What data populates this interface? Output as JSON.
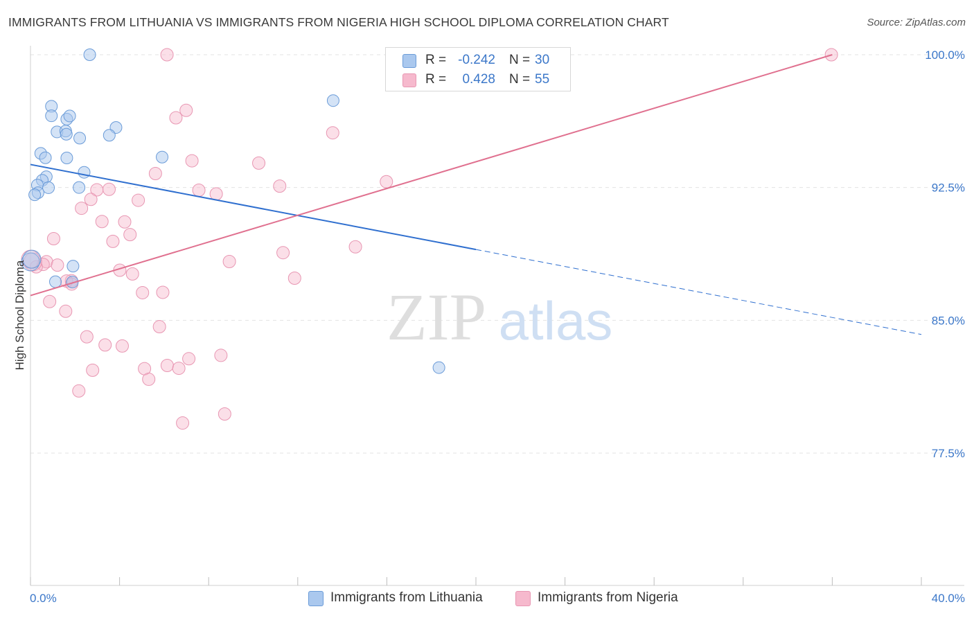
{
  "title": "IMMIGRANTS FROM LITHUANIA VS IMMIGRANTS FROM NIGERIA HIGH SCHOOL DIPLOMA CORRELATION CHART",
  "source": "Source: ZipAtlas.com",
  "watermark": {
    "zip": "ZIP",
    "atlas": "atlas"
  },
  "colors": {
    "lithuania_fill": "#aac8ee",
    "lithuania_stroke": "#6a9bd8",
    "lithuania_line": "#2f6fcf",
    "nigeria_fill": "#f6b9cd",
    "nigeria_stroke": "#e896b2",
    "nigeria_line": "#e0708f",
    "axis_text": "#3b77c9",
    "grid": "#e3e3e3"
  },
  "legend": {
    "rows": [
      {
        "r_label": "R =",
        "r_value": "-0.242",
        "n_label": "N =",
        "n_value": "30"
      },
      {
        "r_label": "R =",
        "r_value": "0.428",
        "n_label": "N =",
        "n_value": "55"
      }
    ]
  },
  "chart_data": {
    "type": "scatter",
    "title": "IMMIGRANTS FROM LITHUANIA VS IMMIGRANTS FROM NIGERIA HIGH SCHOOL DIPLOMA CORRELATION CHART",
    "xlabel": "",
    "ylabel": "High School Diploma",
    "xlim": [
      0,
      40
    ],
    "ylim": [
      70.0,
      101.0
    ],
    "x_tick_labels": [
      "0.0%",
      "40.0%"
    ],
    "y_ticks": [
      77.5,
      85.0,
      92.5,
      100.0
    ],
    "y_tick_labels": [
      "77.5%",
      "85.0%",
      "92.5%",
      "100.0%"
    ],
    "grid": true,
    "legend_position": "bottom",
    "series": [
      {
        "name": "Immigrants from Lithuania",
        "color": "#6a9bd8",
        "trend": {
          "x0": 0.0,
          "y0": 93.8,
          "x1": 20.0,
          "y1": 89.0,
          "dashed_to_x": 40.0,
          "dashed_to_y": 84.2
        },
        "points": [
          [
            2.66,
            100.0
          ],
          [
            0.94,
            97.09
          ],
          [
            1.63,
            96.36
          ],
          [
            0.94,
            96.55
          ],
          [
            1.76,
            96.54
          ],
          [
            3.84,
            95.89
          ],
          [
            1.19,
            95.64
          ],
          [
            1.58,
            95.69
          ],
          [
            1.61,
            95.51
          ],
          [
            3.54,
            95.45
          ],
          [
            2.21,
            95.29
          ],
          [
            0.46,
            94.43
          ],
          [
            1.63,
            94.17
          ],
          [
            0.67,
            94.18
          ],
          [
            5.91,
            94.22
          ],
          [
            2.41,
            93.36
          ],
          [
            0.71,
            93.11
          ],
          [
            0.53,
            92.91
          ],
          [
            0.31,
            92.64
          ],
          [
            0.81,
            92.49
          ],
          [
            2.18,
            92.5
          ],
          [
            0.34,
            92.21
          ],
          [
            0.19,
            92.09
          ],
          [
            13.59,
            97.41
          ],
          [
            1.91,
            88.06
          ],
          [
            1.12,
            87.18
          ],
          [
            1.88,
            87.16
          ],
          [
            18.34,
            82.33
          ],
          [
            0.0,
            88.3
          ],
          [
            0.06,
            88.45
          ]
        ]
      },
      {
        "name": "Immigrants from Nigeria",
        "color": "#e896b2",
        "trend": {
          "x0": 0.0,
          "y0": 86.4,
          "x1": 36.0,
          "y1": 100.0
        },
        "points": [
          [
            6.13,
            100.0
          ],
          [
            35.96,
            100.0
          ],
          [
            6.99,
            96.86
          ],
          [
            6.53,
            96.44
          ],
          [
            13.57,
            95.59
          ],
          [
            7.25,
            94.01
          ],
          [
            10.25,
            93.88
          ],
          [
            5.61,
            93.29
          ],
          [
            15.98,
            92.83
          ],
          [
            11.19,
            92.58
          ],
          [
            3.53,
            92.4
          ],
          [
            2.98,
            92.37
          ],
          [
            7.56,
            92.35
          ],
          [
            8.34,
            92.14
          ],
          [
            4.84,
            91.78
          ],
          [
            2.29,
            91.33
          ],
          [
            2.71,
            91.83
          ],
          [
            3.21,
            90.58
          ],
          [
            4.23,
            90.56
          ],
          [
            4.47,
            89.84
          ],
          [
            3.7,
            89.46
          ],
          [
            1.04,
            89.61
          ],
          [
            14.59,
            89.15
          ],
          [
            11.34,
            88.82
          ],
          [
            8.93,
            88.32
          ],
          [
            0.72,
            88.31
          ],
          [
            0.57,
            88.16
          ],
          [
            0.26,
            88.02
          ],
          [
            1.21,
            88.12
          ],
          [
            4.01,
            87.83
          ],
          [
            4.58,
            87.62
          ],
          [
            11.86,
            87.38
          ],
          [
            1.84,
            87.24
          ],
          [
            1.62,
            87.22
          ],
          [
            1.85,
            87.05
          ],
          [
            0.86,
            86.06
          ],
          [
            5.03,
            86.56
          ],
          [
            5.94,
            86.58
          ],
          [
            1.58,
            85.51
          ],
          [
            5.79,
            84.64
          ],
          [
            2.53,
            84.07
          ],
          [
            3.35,
            83.61
          ],
          [
            4.12,
            83.55
          ],
          [
            8.55,
            83.02
          ],
          [
            7.11,
            82.83
          ],
          [
            6.14,
            82.45
          ],
          [
            6.66,
            82.29
          ],
          [
            5.12,
            82.27
          ],
          [
            2.79,
            82.18
          ],
          [
            5.31,
            81.67
          ],
          [
            2.17,
            81.01
          ],
          [
            8.72,
            79.71
          ],
          [
            6.83,
            79.2
          ],
          [
            0.1,
            88.3
          ],
          [
            0.0,
            88.45
          ]
        ]
      }
    ]
  }
}
